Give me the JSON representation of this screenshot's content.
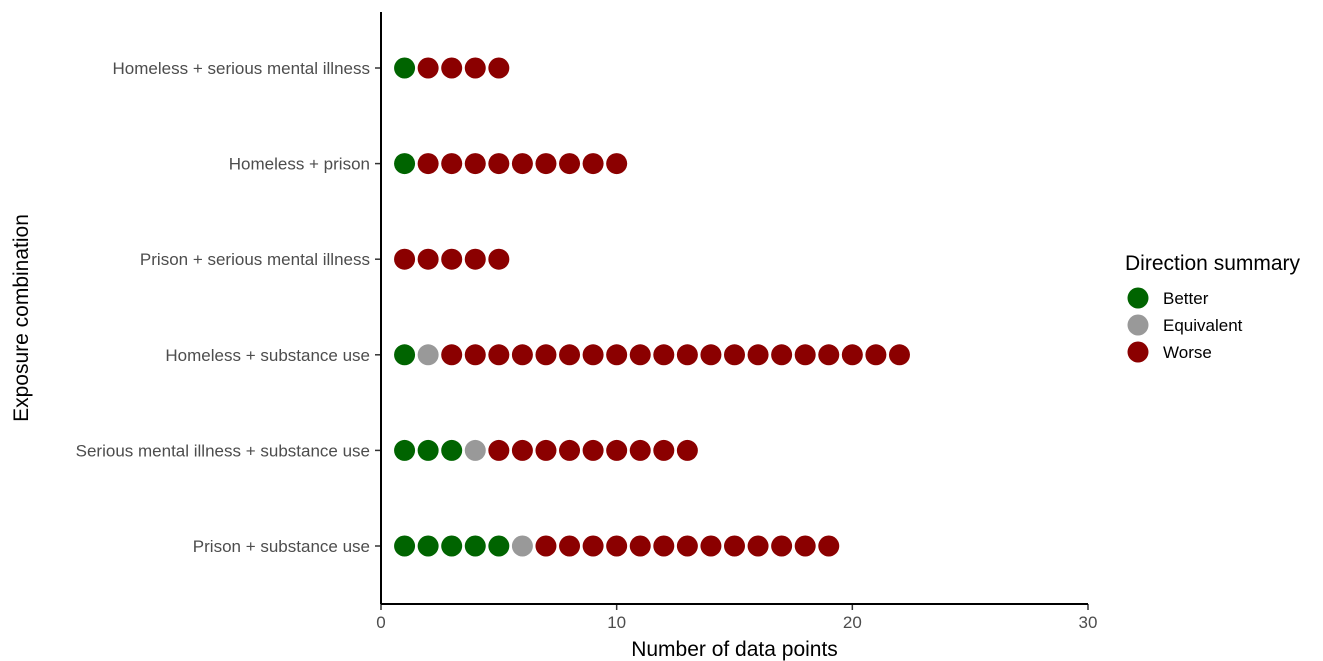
{
  "chart_data": {
    "type": "dot",
    "xlabel": "Number of data points",
    "ylabel": "Exposure combination",
    "xlim": [
      0,
      30
    ],
    "x_ticks": [
      0,
      10,
      20,
      30
    ],
    "grid": false,
    "legend": {
      "title": "Direction summary",
      "placement": "right",
      "entries": [
        {
          "key": "better",
          "label": "Better",
          "color": "#006400"
        },
        {
          "key": "equivalent",
          "label": "Equivalent",
          "color": "#999999"
        },
        {
          "key": "worse",
          "label": "Worse",
          "color": "#8b0000"
        }
      ]
    },
    "categories": [
      "Homeless + serious mental illness",
      "Homeless + prison",
      "Prison + serious mental illness",
      "Homeless + substance use",
      "Serious mental illness + substance use",
      "Prison + substance use"
    ],
    "counts": [
      {
        "category": "Homeless + serious mental illness",
        "better": 1,
        "equivalent": 0,
        "worse": 4
      },
      {
        "category": "Homeless + prison",
        "better": 1,
        "equivalent": 0,
        "worse": 9
      },
      {
        "category": "Prison + serious mental illness",
        "better": 0,
        "equivalent": 0,
        "worse": 5
      },
      {
        "category": "Homeless + substance use",
        "better": 1,
        "equivalent": 1,
        "worse": 20
      },
      {
        "category": "Serious mental illness + substance use",
        "better": 3,
        "equivalent": 1,
        "worse": 9
      },
      {
        "category": "Prison + substance use",
        "better": 5,
        "equivalent": 1,
        "worse": 13
      }
    ]
  }
}
